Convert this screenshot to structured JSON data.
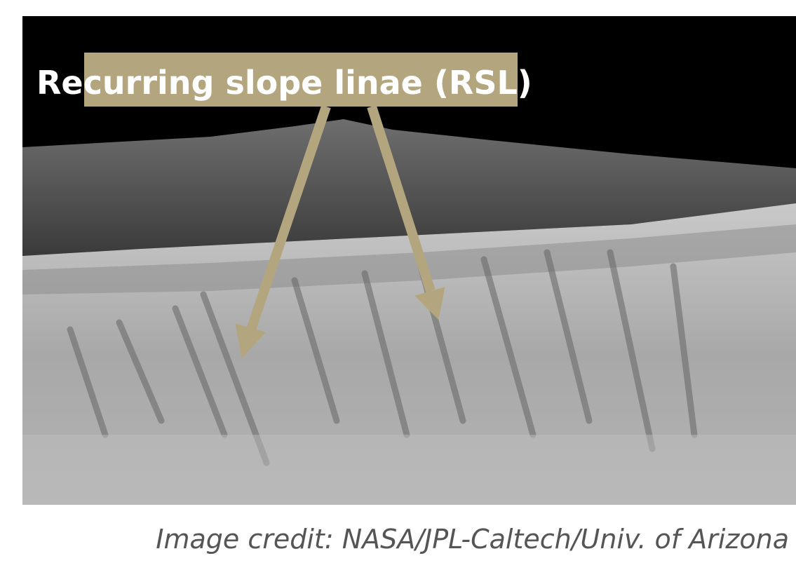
{
  "image": {
    "label": "Recurring slope linae (RSL)"
  },
  "caption": "Image credit: NASA/JPL-Caltech/Univ. of Arizona"
}
